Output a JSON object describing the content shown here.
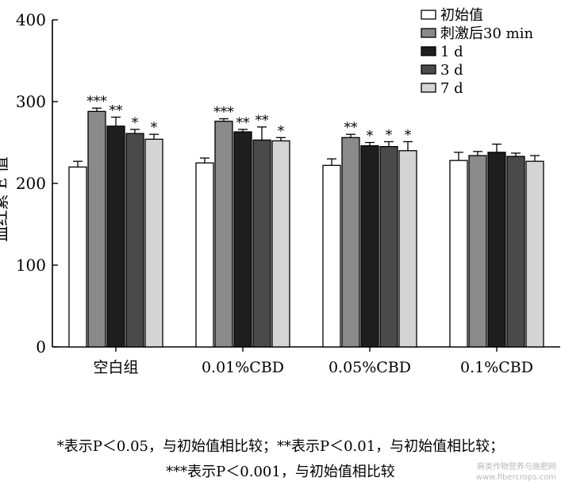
{
  "chart_data": {
    "type": "bar",
    "ylabel": "血红素 E 值",
    "ylim": [
      0,
      400
    ],
    "yticks": [
      0,
      100,
      200,
      300,
      400
    ],
    "categories": [
      "空白组",
      "0.01%CBD",
      "0.05%CBD",
      "0.1%CBD"
    ],
    "series": [
      {
        "name": "初始值",
        "color": "#ffffff",
        "values": [
          220,
          225,
          222,
          228
        ],
        "errors": [
          7,
          6,
          8,
          10
        ],
        "sig": [
          "",
          "",
          "",
          ""
        ]
      },
      {
        "name": "刺激后30 min",
        "color": "#8a8a8a",
        "values": [
          288,
          276,
          256,
          234
        ],
        "errors": [
          4,
          3,
          4,
          5
        ],
        "sig": [
          "***",
          "***",
          "**",
          ""
        ]
      },
      {
        "name": "1 d",
        "color": "#1e1e1e",
        "values": [
          270,
          263,
          246,
          238
        ],
        "errors": [
          11,
          3,
          4,
          10
        ],
        "sig": [
          "**",
          "**",
          "*",
          ""
        ]
      },
      {
        "name": "3 d",
        "color": "#4a4a4a",
        "values": [
          261,
          253,
          245,
          233
        ],
        "errors": [
          5,
          16,
          6,
          4
        ],
        "sig": [
          "*",
          "**",
          "*",
          ""
        ]
      },
      {
        "name": "7 d",
        "color": "#d4d4d4",
        "values": [
          254,
          252,
          240,
          227
        ],
        "errors": [
          6,
          4,
          11,
          7
        ],
        "sig": [
          "*",
          "*",
          "*",
          ""
        ]
      }
    ],
    "legend_position": "top-right"
  },
  "footnote": {
    "line1": "*表示P＜0.05，与初始值相比较；**表示P＜0.01，与初始值相比较；",
    "line2": "***表示P＜0.001，与初始值相比较"
  },
  "watermark": {
    "line1": "麻类作物营养与施肥网",
    "line2": "www.fibercrops.com"
  }
}
